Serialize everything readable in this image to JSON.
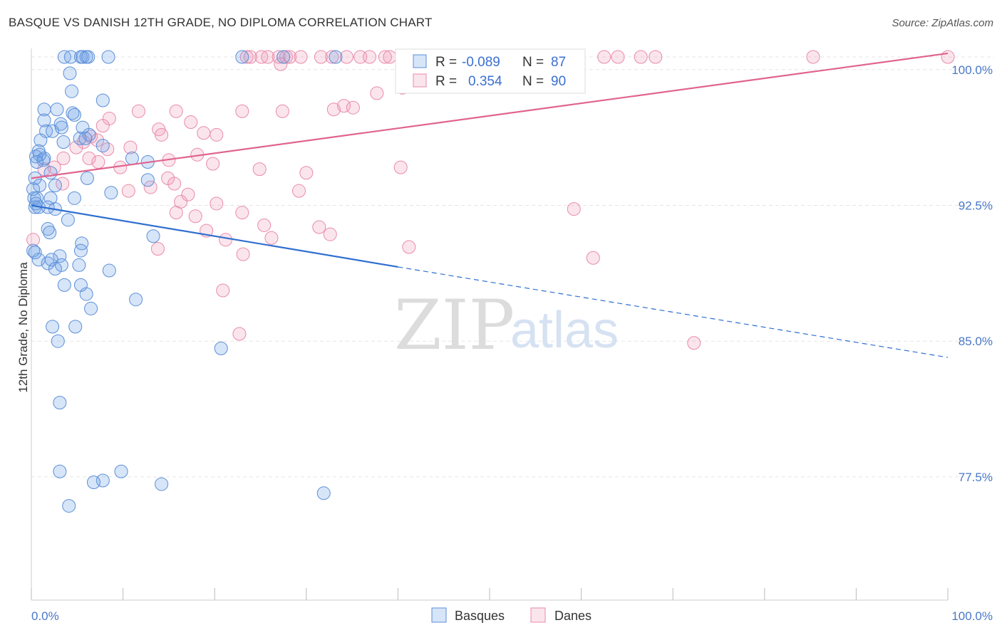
{
  "title": "BASQUE VS DANISH 12TH GRADE, NO DIPLOMA CORRELATION CHART",
  "source": "Source: ZipAtlas.com",
  "watermark": {
    "zip": "ZIP",
    "atlas": "atlas"
  },
  "legend_box": {
    "rows": [
      {
        "r_label": "R = ",
        "r_value": "-0.089",
        "n_label": "N = ",
        "n_value": "87"
      },
      {
        "r_label": "R = ",
        "r_value": "0.354",
        "n_label": "N = ",
        "n_value": "90"
      }
    ]
  },
  "bottom_legend": {
    "items": [
      "Basques",
      "Danes"
    ]
  },
  "colors": {
    "basques_fill": "rgba(110,160,230,0.28)",
    "basques_stroke": "#5b8fd8",
    "basques_line": "#2f6fd0",
    "danes_fill": "rgba(240,150,180,0.25)",
    "danes_stroke": "#e98aab",
    "danes_line": "#e0648f",
    "tick_label": "#4a78c8",
    "grid": "#e5e5e5"
  },
  "chart_data": {
    "type": "scatter",
    "title": "BASQUE VS DANISH 12TH GRADE, NO DIPLOMA CORRELATION CHART",
    "xlabel": "",
    "ylabel": "12th Grade, No Diploma",
    "xlim": [
      0,
      100
    ],
    "ylim": [
      71,
      101.5
    ],
    "x_tick_labels": [
      "0.0%",
      "100.0%"
    ],
    "y_ticks": [
      100.0,
      92.5,
      85.0,
      77.5
    ],
    "y_tick_labels": [
      "100.0%",
      "92.5%",
      "85.0%",
      "77.5%"
    ],
    "grid": true,
    "legend_position": "top-center",
    "series": [
      {
        "name": "Basques",
        "R": -0.089,
        "N": 87,
        "trend": {
          "x_start": 0,
          "y_start": 92.5,
          "x_solid_end": 40,
          "y_solid_end": 89.1,
          "x_end": 100,
          "y_end": 84.1
        },
        "points": [
          [
            3.6,
            100.7
          ],
          [
            4.3,
            100.7
          ],
          [
            5.4,
            100.7
          ],
          [
            5.6,
            100.7
          ],
          [
            6.0,
            100.7
          ],
          [
            6.2,
            100.7
          ],
          [
            8.4,
            100.7
          ],
          [
            23.0,
            100.7
          ],
          [
            27.5,
            100.7
          ],
          [
            33.2,
            100.7
          ],
          [
            4.2,
            99.8
          ],
          [
            4.4,
            98.8
          ],
          [
            7.8,
            98.3
          ],
          [
            1.4,
            97.8
          ],
          [
            2.8,
            97.8
          ],
          [
            4.5,
            97.6
          ],
          [
            4.7,
            97.5
          ],
          [
            1.4,
            97.2
          ],
          [
            3.2,
            97.0
          ],
          [
            5.6,
            96.8
          ],
          [
            1.6,
            96.6
          ],
          [
            2.3,
            96.6
          ],
          [
            6.3,
            96.4
          ],
          [
            1.0,
            96.1
          ],
          [
            3.5,
            96.0
          ],
          [
            5.3,
            96.2
          ],
          [
            0.8,
            95.5
          ],
          [
            7.8,
            95.8
          ],
          [
            11.0,
            95.1
          ],
          [
            1.3,
            95.0
          ],
          [
            0.5,
            95.2
          ],
          [
            1.4,
            95.1
          ],
          [
            2.1,
            94.3
          ],
          [
            6.1,
            94.0
          ],
          [
            0.4,
            94.0
          ],
          [
            0.9,
            93.6
          ],
          [
            12.7,
            93.9
          ],
          [
            0.2,
            93.4
          ],
          [
            8.7,
            93.2
          ],
          [
            0.3,
            92.9
          ],
          [
            0.6,
            92.9
          ],
          [
            2.1,
            92.9
          ],
          [
            4.7,
            92.9
          ],
          [
            0.4,
            92.4
          ],
          [
            0.8,
            92.4
          ],
          [
            2.6,
            92.3
          ],
          [
            1.8,
            92.4
          ],
          [
            4.0,
            91.7
          ],
          [
            1.8,
            91.2
          ],
          [
            2.0,
            91.0
          ],
          [
            13.3,
            90.8
          ],
          [
            5.5,
            90.4
          ],
          [
            5.4,
            90.0
          ],
          [
            0.2,
            90.0
          ],
          [
            3.1,
            89.7
          ],
          [
            0.8,
            89.5
          ],
          [
            1.8,
            89.3
          ],
          [
            2.2,
            89.5
          ],
          [
            3.3,
            89.2
          ],
          [
            2.6,
            89.0
          ],
          [
            5.2,
            89.2
          ],
          [
            8.5,
            88.9
          ],
          [
            3.6,
            88.1
          ],
          [
            5.4,
            88.1
          ],
          [
            6.0,
            87.6
          ],
          [
            11.4,
            87.3
          ],
          [
            6.5,
            86.8
          ],
          [
            2.3,
            85.8
          ],
          [
            4.8,
            85.8
          ],
          [
            2.9,
            85.0
          ],
          [
            20.7,
            84.6
          ],
          [
            3.1,
            81.6
          ],
          [
            3.1,
            77.8
          ],
          [
            9.8,
            77.8
          ],
          [
            7.8,
            77.3
          ],
          [
            6.8,
            77.2
          ],
          [
            14.2,
            77.1
          ],
          [
            31.9,
            76.6
          ],
          [
            4.1,
            75.9
          ],
          [
            0.4,
            89.9
          ],
          [
            0.5,
            92.6
          ],
          [
            2.6,
            93.6
          ],
          [
            0.9,
            95.3
          ],
          [
            5.9,
            96.2
          ],
          [
            3.3,
            96.8
          ],
          [
            12.7,
            94.9
          ],
          [
            0.6,
            94.9
          ]
        ]
      },
      {
        "name": "Danes",
        "R": 0.354,
        "N": 90,
        "trend": {
          "x_start": 0,
          "y_start": 94.0,
          "x_end": 100,
          "y_end": 100.9
        },
        "points": [
          [
            23.5,
            100.7
          ],
          [
            23.9,
            100.7
          ],
          [
            25.1,
            100.7
          ],
          [
            25.8,
            100.7
          ],
          [
            27.0,
            100.7
          ],
          [
            27.8,
            100.7
          ],
          [
            28.2,
            100.7
          ],
          [
            29.4,
            100.7
          ],
          [
            31.6,
            100.7
          ],
          [
            32.8,
            100.7
          ],
          [
            34.4,
            100.7
          ],
          [
            35.9,
            100.7
          ],
          [
            36.9,
            100.7
          ],
          [
            38.6,
            100.7
          ],
          [
            39.1,
            100.7
          ],
          [
            41.4,
            100.7
          ],
          [
            45.7,
            100.7
          ],
          [
            48.8,
            100.7
          ],
          [
            51.3,
            100.7
          ],
          [
            54.6,
            100.7
          ],
          [
            58.3,
            100.7
          ],
          [
            62.5,
            100.7
          ],
          [
            64.0,
            100.7
          ],
          [
            66.5,
            100.7
          ],
          [
            68.1,
            100.7
          ],
          [
            85.3,
            100.7
          ],
          [
            100.0,
            100.7
          ],
          [
            27.2,
            100.3
          ],
          [
            45.8,
            99.4
          ],
          [
            40.5,
            99.0
          ],
          [
            37.7,
            98.7
          ],
          [
            34.1,
            98.0
          ],
          [
            35.1,
            97.9
          ],
          [
            33.0,
            97.8
          ],
          [
            27.4,
            97.7
          ],
          [
            23.0,
            97.7
          ],
          [
            15.8,
            97.7
          ],
          [
            11.7,
            97.7
          ],
          [
            8.5,
            97.3
          ],
          [
            17.4,
            97.1
          ],
          [
            13.9,
            96.7
          ],
          [
            7.8,
            96.9
          ],
          [
            18.8,
            96.5
          ],
          [
            6.5,
            96.3
          ],
          [
            14.2,
            96.4
          ],
          [
            20.2,
            96.4
          ],
          [
            7.2,
            96.1
          ],
          [
            5.7,
            96.0
          ],
          [
            8.3,
            95.6
          ],
          [
            10.8,
            95.7
          ],
          [
            4.9,
            95.7
          ],
          [
            3.5,
            95.1
          ],
          [
            6.3,
            95.1
          ],
          [
            7.3,
            94.9
          ],
          [
            15.0,
            95.0
          ],
          [
            18.1,
            95.3
          ],
          [
            9.7,
            94.6
          ],
          [
            2.5,
            94.6
          ],
          [
            1.4,
            94.5
          ],
          [
            19.8,
            94.8
          ],
          [
            24.9,
            94.5
          ],
          [
            14.9,
            94.0
          ],
          [
            3.4,
            93.7
          ],
          [
            15.6,
            93.7
          ],
          [
            13.0,
            93.5
          ],
          [
            10.6,
            93.3
          ],
          [
            17.1,
            93.1
          ],
          [
            29.2,
            93.3
          ],
          [
            20.2,
            92.6
          ],
          [
            16.3,
            92.7
          ],
          [
            23.0,
            92.1
          ],
          [
            15.8,
            92.1
          ],
          [
            17.9,
            91.9
          ],
          [
            31.4,
            91.3
          ],
          [
            25.4,
            91.4
          ],
          [
            19.1,
            91.1
          ],
          [
            32.6,
            90.9
          ],
          [
            26.2,
            90.7
          ],
          [
            21.2,
            90.6
          ],
          [
            41.2,
            90.2
          ],
          [
            13.8,
            90.1
          ],
          [
            23.1,
            89.8
          ],
          [
            61.3,
            89.6
          ],
          [
            20.9,
            87.8
          ],
          [
            22.7,
            85.4
          ],
          [
            72.3,
            84.9
          ],
          [
            0.2,
            90.6
          ],
          [
            59.2,
            92.3
          ],
          [
            40.3,
            94.6
          ],
          [
            30.0,
            94.3
          ]
        ]
      }
    ]
  }
}
